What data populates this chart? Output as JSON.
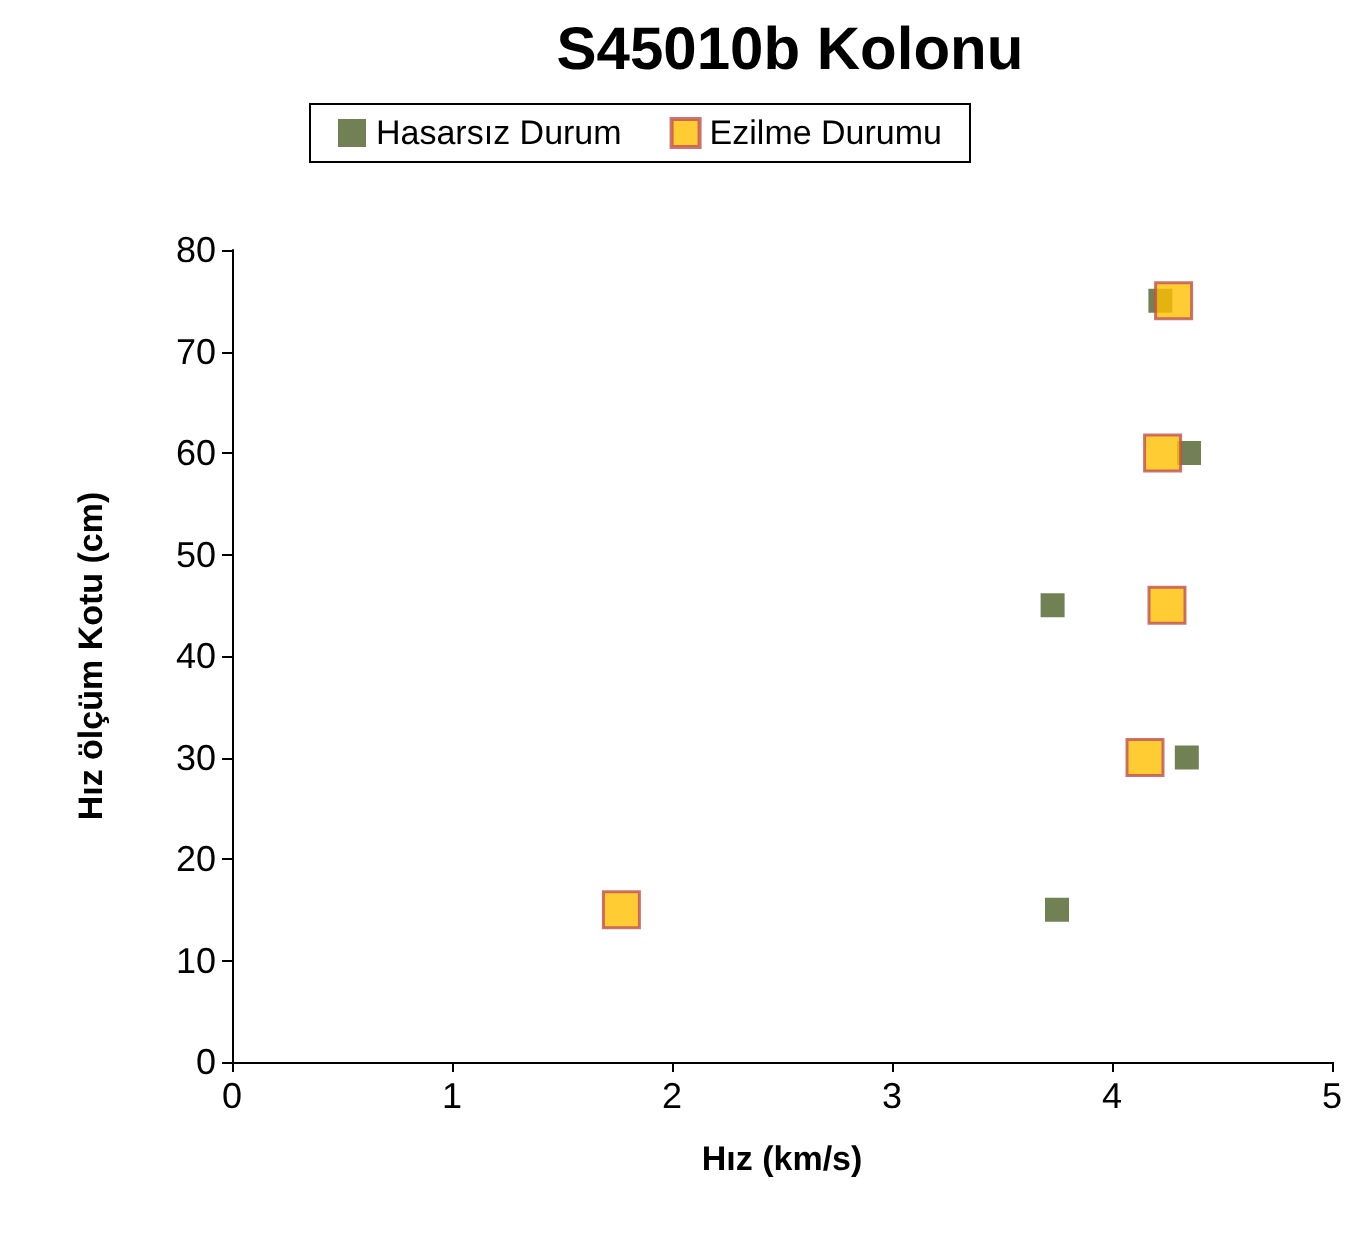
{
  "chart_data": {
    "type": "scatter",
    "title": "S45010b Kolonu",
    "xlabel": "Hız (km/s)",
    "ylabel": "Hız ölçüm Kotu (cm)",
    "series": [
      {
        "name": "Hasarsız Durum",
        "color": "#4f6228",
        "x": [
          4.22,
          4.35,
          3.73,
          4.34,
          3.75
        ],
        "values": [
          75,
          60,
          45,
          30,
          15
        ]
      },
      {
        "name": "Ezilme Durumu",
        "color": "#ffc000",
        "x": [
          4.28,
          4.23,
          4.25,
          4.15,
          1.77
        ],
        "values": [
          75,
          60,
          45,
          30,
          15
        ]
      }
    ],
    "xlim": [
      0,
      5
    ],
    "xticks": [
      0,
      1,
      2,
      3,
      4,
      5
    ],
    "ylim": [
      0,
      80
    ],
    "yticks": [
      0,
      10,
      20,
      30,
      40,
      50,
      60,
      70,
      80
    ],
    "grid": false,
    "legend": "top",
    "marker": "square"
  }
}
